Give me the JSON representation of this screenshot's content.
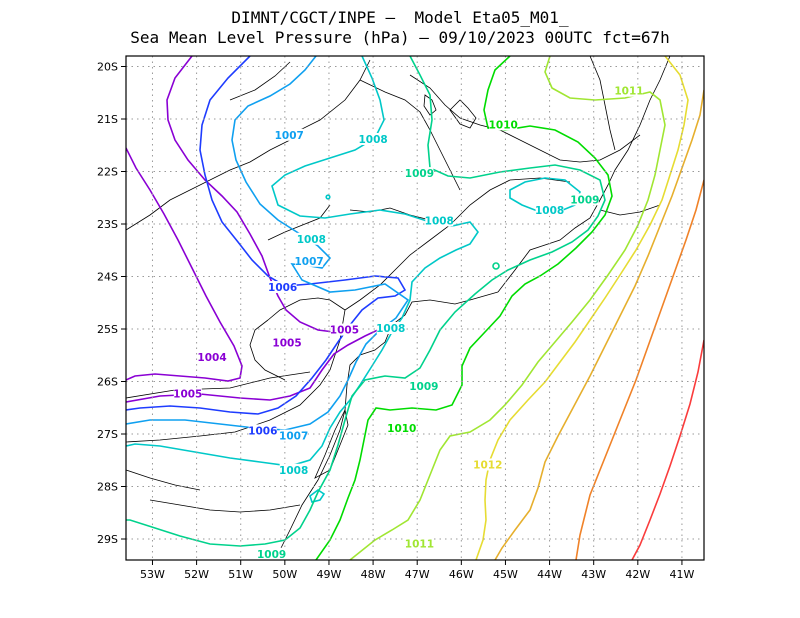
{
  "title_lines": [
    "DIMNT/CGCT/INPE –  Model Eta05_M01_",
    "Sea Mean Level Pressure (hPa) – 09/10/2023 00UTC fct=67h"
  ],
  "axes": {
    "lat_labels": [
      "20S",
      "21S",
      "22S",
      "23S",
      "24S",
      "25S",
      "26S",
      "27S",
      "28S",
      "29S"
    ],
    "lon_labels": [
      "53W",
      "52W",
      "51W",
      "50W",
      "49W",
      "48W",
      "47W",
      "46W",
      "45W",
      "44W",
      "43W",
      "42W",
      "41W"
    ]
  },
  "colors": {
    "1004": "#8a00d4",
    "1005": "#8a00d4",
    "1006": "#1e3cff",
    "1007": "#0fa0f0",
    "1008": "#00c8c8",
    "1009": "#00d28c",
    "1010": "#00dc00",
    "1011": "#a0e632",
    "1012": "#e6dc32",
    "1013": "#e6af2d",
    "1014": "#f08228",
    "1015": "#fa3c3c",
    "coast": "#000000",
    "grid": "#9a9a9a"
  },
  "chart_data": {
    "type": "contour-map",
    "variable": "Sea Mean Level Pressure (hPa)",
    "grid": true,
    "lon_range": [
      -53.6,
      -40.5
    ],
    "lat_range": [
      -29.4,
      -19.8
    ],
    "contour_labels": [
      {
        "text": "1004",
        "level": "1004",
        "lon": -51.65,
        "lat": -25.55
      },
      {
        "text": "1005",
        "level": "1005",
        "lon": -49.95,
        "lat": -25.28
      },
      {
        "text": "1005",
        "level": "1005",
        "lon": -48.65,
        "lat": -25.03
      },
      {
        "text": "1005",
        "level": "1005",
        "lon": -52.2,
        "lat": -26.25
      },
      {
        "text": "1006",
        "level": "1006",
        "lon": -50.05,
        "lat": -24.22
      },
      {
        "text": "1006",
        "level": "1006",
        "lon": -50.5,
        "lat": -26.95
      },
      {
        "text": "1007",
        "level": "1007",
        "lon": -49.9,
        "lat": -21.32
      },
      {
        "text": "1007",
        "level": "1007",
        "lon": -49.45,
        "lat": -23.72
      },
      {
        "text": "1007",
        "level": "1007",
        "lon": -49.8,
        "lat": -27.05
      },
      {
        "text": "1008",
        "level": "1008",
        "lon": -48.0,
        "lat": -21.4
      },
      {
        "text": "1008",
        "level": "1008",
        "lon": -49.4,
        "lat": -23.3
      },
      {
        "text": "1008",
        "level": "1008",
        "lon": -46.5,
        "lat": -22.95
      },
      {
        "text": "1008",
        "level": "1008",
        "lon": -44.0,
        "lat": -22.75
      },
      {
        "text": "1008",
        "level": "1008",
        "lon": -47.6,
        "lat": -25.0
      },
      {
        "text": "1008",
        "level": "1008",
        "lon": -49.8,
        "lat": -27.7
      },
      {
        "text": "1009",
        "level": "1009",
        "lon": -46.95,
        "lat": -22.05
      },
      {
        "text": "1009",
        "level": "1009",
        "lon": -43.2,
        "lat": -22.55
      },
      {
        "text": "1009",
        "level": "1009",
        "lon": -46.85,
        "lat": -26.1
      },
      {
        "text": "1009",
        "level": "1009",
        "lon": -50.3,
        "lat": -29.3
      },
      {
        "text": "1010",
        "level": "1010",
        "lon": -45.05,
        "lat": -21.12
      },
      {
        "text": "1010",
        "level": "1010",
        "lon": -47.35,
        "lat": -26.9
      },
      {
        "text": "1011",
        "level": "1011",
        "lon": -42.2,
        "lat": -20.48
      },
      {
        "text": "1011",
        "level": "1011",
        "lon": -46.95,
        "lat": -29.1
      },
      {
        "text": "1012",
        "level": "1012",
        "lon": -45.4,
        "lat": -27.6
      }
    ]
  }
}
